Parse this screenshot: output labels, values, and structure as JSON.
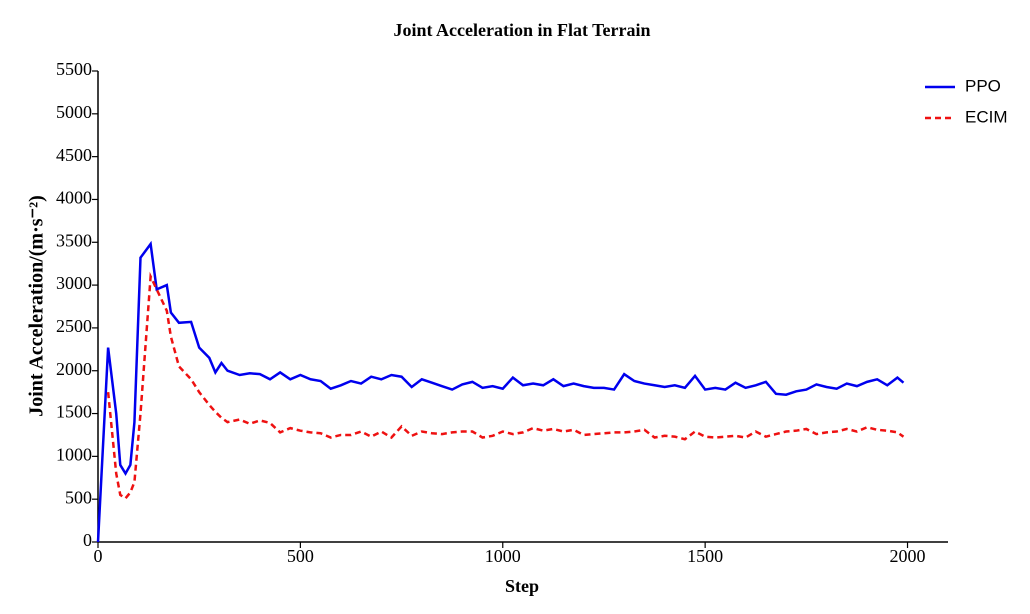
{
  "chart_data": {
    "type": "line",
    "title": "Joint Acceleration in Flat Terrain",
    "x_label": "Step",
    "y_label": "Joint Acceleration/(m·s⁻²)",
    "x": [
      0,
      25,
      45,
      55,
      68,
      80,
      90,
      105,
      130,
      145,
      170,
      180,
      200,
      230,
      250,
      275,
      290,
      305,
      320,
      350,
      375,
      400,
      425,
      450,
      475,
      500,
      525,
      550,
      575,
      600,
      625,
      650,
      675,
      700,
      725,
      750,
      775,
      800,
      825,
      850,
      875,
      900,
      925,
      950,
      975,
      1000,
      1025,
      1050,
      1075,
      1100,
      1125,
      1150,
      1175,
      1200,
      1225,
      1250,
      1275,
      1300,
      1325,
      1350,
      1375,
      1400,
      1425,
      1450,
      1475,
      1500,
      1525,
      1550,
      1575,
      1600,
      1625,
      1650,
      1675,
      1700,
      1725,
      1750,
      1775,
      1800,
      1825,
      1850,
      1875,
      1900,
      1925,
      1950,
      1975,
      1990
    ],
    "series": [
      {
        "name": "PPO",
        "color": "#0000ee",
        "dash": "solid",
        "values": [
          0,
          2270,
          1500,
          900,
          800,
          900,
          1400,
          3320,
          3480,
          2950,
          3000,
          2680,
          2560,
          2570,
          2270,
          2150,
          1980,
          2090,
          2000,
          1950,
          1970,
          1960,
          1900,
          1980,
          1900,
          1950,
          1900,
          1880,
          1790,
          1830,
          1880,
          1850,
          1930,
          1900,
          1950,
          1930,
          1810,
          1900,
          1860,
          1820,
          1780,
          1840,
          1870,
          1800,
          1820,
          1790,
          1920,
          1830,
          1850,
          1830,
          1900,
          1820,
          1850,
          1820,
          1800,
          1800,
          1780,
          1960,
          1880,
          1850,
          1830,
          1810,
          1830,
          1800,
          1940,
          1780,
          1800,
          1780,
          1860,
          1800,
          1830,
          1870,
          1730,
          1720,
          1760,
          1780,
          1840,
          1810,
          1790,
          1850,
          1820,
          1870,
          1900,
          1830,
          1920,
          1860
        ]
      },
      {
        "name": "ECIM",
        "color": "#ee1111",
        "dash": "dashed",
        "values": [
          null,
          1750,
          800,
          550,
          510,
          580,
          700,
          1500,
          3100,
          2950,
          2700,
          2400,
          2050,
          1900,
          1750,
          1600,
          1520,
          1450,
          1400,
          1430,
          1380,
          1420,
          1390,
          1280,
          1330,
          1300,
          1280,
          1270,
          1220,
          1250,
          1250,
          1290,
          1230,
          1290,
          1220,
          1350,
          1240,
          1290,
          1270,
          1260,
          1280,
          1290,
          1290,
          1220,
          1240,
          1290,
          1260,
          1280,
          1330,
          1300,
          1320,
          1290,
          1310,
          1250,
          1260,
          1270,
          1280,
          1280,
          1290,
          1310,
          1220,
          1240,
          1230,
          1200,
          1290,
          1230,
          1220,
          1230,
          1240,
          1220,
          1290,
          1230,
          1260,
          1290,
          1300,
          1320,
          1260,
          1280,
          1290,
          1320,
          1290,
          1340,
          1310,
          1300,
          1280,
          1230
        ]
      }
    ],
    "xlim": [
      0,
      2100
    ],
    "xticks": [
      0,
      500,
      1000,
      1500,
      2000
    ],
    "ylim": [
      0,
      5500
    ],
    "yticks": [
      0,
      500,
      1000,
      1500,
      2000,
      2500,
      3000,
      3500,
      4000,
      4500,
      5000,
      5500
    ],
    "legend": "upper right",
    "grid": false
  }
}
